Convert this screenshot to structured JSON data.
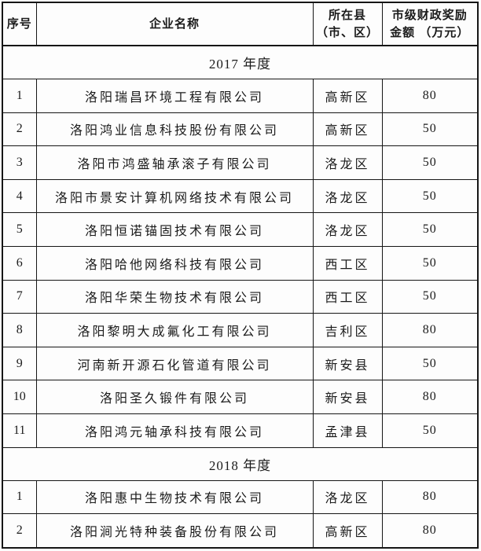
{
  "table": {
    "headers": {
      "no": "序号",
      "name": "企业名称",
      "district_line1": "所在县",
      "district_line2": "（市、区）",
      "amount_line1": "市级财政奖励",
      "amount_line2": "金额 （万元）"
    },
    "sections": [
      {
        "title": "2017 年度",
        "rows": [
          {
            "no": "1",
            "name": "洛阳瑞昌环境工程有限公司",
            "district": "高新区",
            "amount": "80"
          },
          {
            "no": "2",
            "name": "洛阳鸿业信息科技股份有限公司",
            "district": "高新区",
            "amount": "50"
          },
          {
            "no": "3",
            "name": "洛阳市鸿盛轴承滚子有限公司",
            "district": "洛龙区",
            "amount": "50"
          },
          {
            "no": "4",
            "name": "洛阳市景安计算机网络技术有限公司",
            "district": "洛龙区",
            "amount": "50"
          },
          {
            "no": "5",
            "name": "洛阳恒诺锚固技术有限公司",
            "district": "洛龙区",
            "amount": "50"
          },
          {
            "no": "6",
            "name": "洛阳哈他网络科技有限公司",
            "district": "西工区",
            "amount": "50"
          },
          {
            "no": "7",
            "name": "洛阳华荣生物技术有限公司",
            "district": "西工区",
            "amount": "50"
          },
          {
            "no": "8",
            "name": "洛阳黎明大成氟化工有限公司",
            "district": "吉利区",
            "amount": "80"
          },
          {
            "no": "9",
            "name": "河南新开源石化管道有限公司",
            "district": "新安县",
            "amount": "50"
          },
          {
            "no": "10",
            "name": "洛阳圣久锻件有限公司",
            "district": "新安县",
            "amount": "80"
          },
          {
            "no": "11",
            "name": "洛阳鸿元轴承科技有限公司",
            "district": "孟津县",
            "amount": "50"
          }
        ]
      },
      {
        "title": "2018 年度",
        "rows": [
          {
            "no": "1",
            "name": "洛阳惠中生物技术有限公司",
            "district": "洛龙区",
            "amount": "80"
          },
          {
            "no": "2",
            "name": "洛阳涧光特种装备股份有限公司",
            "district": "高新区",
            "amount": "80"
          }
        ]
      }
    ]
  }
}
